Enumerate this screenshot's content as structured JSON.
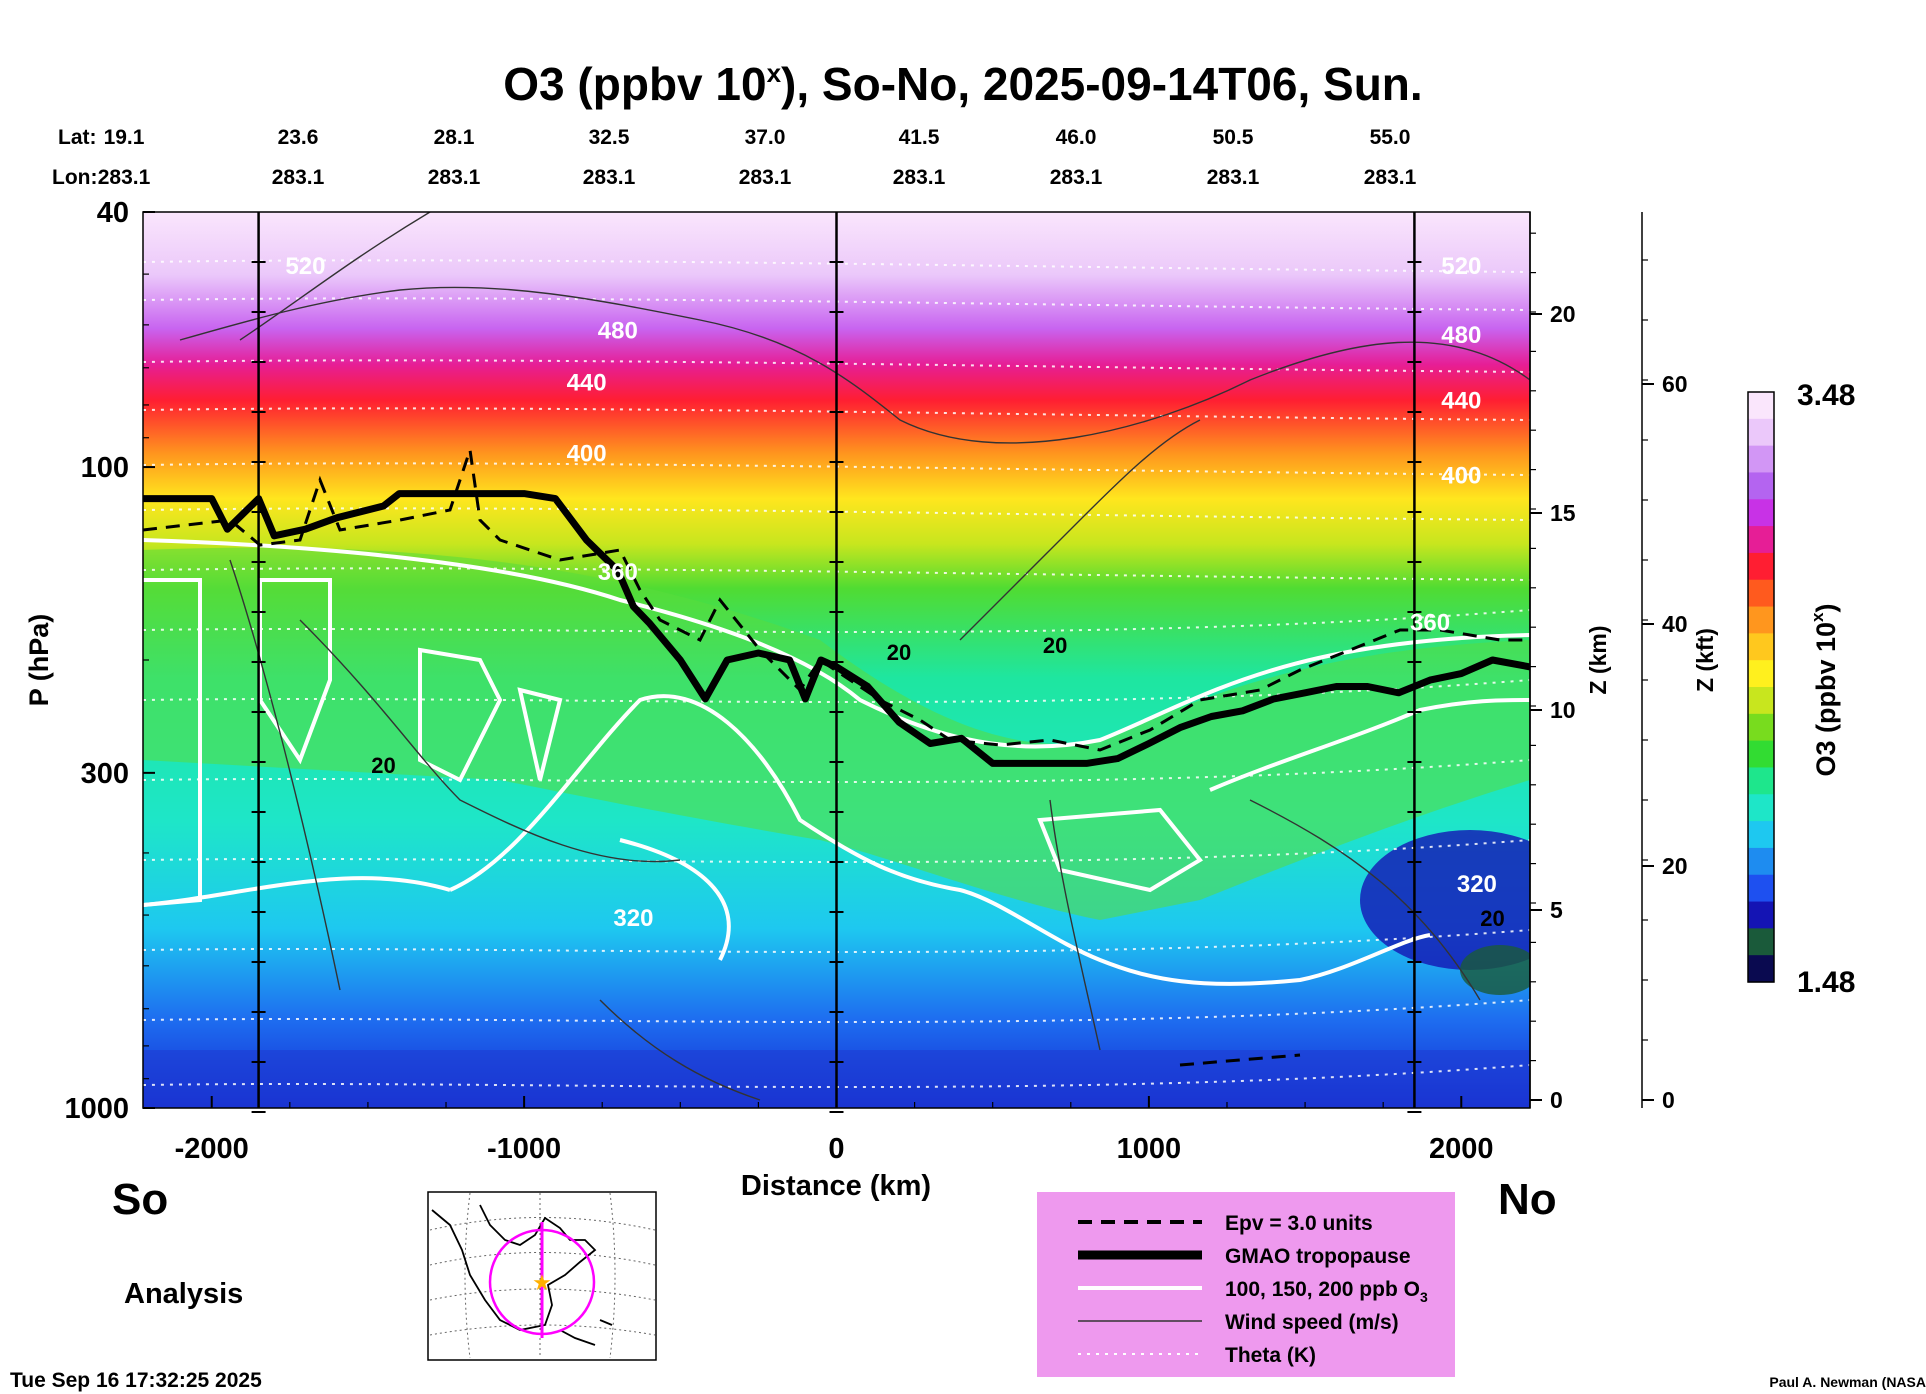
{
  "title_main": "O3 (ppbv 10",
  "title_sup": "x",
  "title_rest": "), So-No, 2025-09-14T06, Sun.",
  "header": {
    "lat_label": "Lat:",
    "lon_label": "Lon:",
    "lats": [
      "19.1",
      "23.6",
      "28.1",
      "32.5",
      "37.0",
      "41.5",
      "46.0",
      "50.5",
      "55.0"
    ],
    "lons": [
      "283.1",
      "283.1",
      "283.1",
      "283.1",
      "283.1",
      "283.1",
      "283.1",
      "283.1",
      "283.1"
    ]
  },
  "footer": {
    "south": "So",
    "north": "No",
    "analysis": "Analysis",
    "timestamp": "Tue Sep 16 17:32:25 2025",
    "credit": "Paul A. Newman (NASA"
  },
  "legend": {
    "items": [
      {
        "label": "Epv = 3.0 units",
        "style": "dashed"
      },
      {
        "label": "GMAO tropopause",
        "style": "thick"
      },
      {
        "label": "100, 150, 200 ppb O",
        "sub": "3",
        "style": "white"
      },
      {
        "label": "Wind speed (m/s)",
        "style": "thin"
      },
      {
        "label": "Theta (K)",
        "style": "dotted"
      }
    ],
    "bg_color": "#ee99ee"
  },
  "colorbar": {
    "label": "O3 (ppbv 10",
    "label_sup": "x",
    "label_end": ")",
    "max": "3.48",
    "min": "1.48",
    "colors": [
      "#0a0a50",
      "#1a5a3a",
      "#1414b4",
      "#1e50f0",
      "#1e8cf0",
      "#1ec8f0",
      "#1ee6c8",
      "#1ee68c",
      "#32dc32",
      "#78dc1e",
      "#c8e61e",
      "#fff01e",
      "#ffc81e",
      "#ff961e",
      "#ff5a1e",
      "#ff1e32",
      "#e61e96",
      "#c832e6",
      "#b464f0",
      "#d296f5",
      "#ebc8fa",
      "#fae6fc"
    ]
  },
  "chart_data": {
    "type": "heatmap",
    "title": "O3 (ppbv 10^x), So-No, 2025-09-14T06, Sun.",
    "xlabel": "Distance (km)",
    "ylabel": "P (hPa)",
    "zlabel_km": "Z (km)",
    "zlabel_kft": "Z (kft)",
    "xlim": [
      -2220,
      2220
    ],
    "ylim": [
      1000,
      40
    ],
    "yscale": "log",
    "x_ticks": [
      "-2000",
      "-1000",
      "0",
      "1000",
      "2000"
    ],
    "x_tick_values": [
      -2000,
      -1000,
      0,
      1000,
      2000
    ],
    "y_ticks": [
      "40",
      "100",
      "300",
      "1000"
    ],
    "y_tick_values": [
      40,
      100,
      300,
      1000
    ],
    "z_km_ticks": [
      "20",
      "15",
      "10",
      "5",
      "0"
    ],
    "z_km_values": [
      20,
      15,
      10,
      5,
      0
    ],
    "z_kft_ticks": [
      "60",
      "40",
      "20",
      "0"
    ],
    "z_kft_values": [
      60,
      40,
      20,
      0
    ],
    "section_lines_km": [
      -1850,
      0,
      1850
    ],
    "colorbar_range": [
      1.48,
      3.48
    ],
    "tropopause": {
      "name": "GMAO tropopause",
      "x": [
        -2220,
        -2000,
        -1950,
        -1850,
        -1800,
        -1700,
        -1600,
        -1450,
        -1400,
        -1200,
        -1000,
        -900,
        -800,
        -700,
        -650,
        -600,
        -500,
        -420,
        -350,
        -250,
        -150,
        -100,
        -50,
        0,
        100,
        200,
        300,
        400,
        500,
        600,
        800,
        900,
        1000,
        1100,
        1200,
        1300,
        1400,
        1500,
        1600,
        1700,
        1800,
        1900,
        2000,
        2100,
        2220
      ],
      "p_hPa": [
        112,
        112,
        125,
        112,
        128,
        125,
        120,
        115,
        110,
        110,
        110,
        112,
        130,
        145,
        165,
        175,
        200,
        230,
        200,
        195,
        200,
        230,
        200,
        205,
        220,
        250,
        270,
        265,
        290,
        290,
        290,
        285,
        270,
        255,
        245,
        240,
        230,
        225,
        220,
        220,
        225,
        215,
        210,
        200,
        205
      ]
    },
    "theta_contours_K": [
      {
        "label": "520",
        "x": -1700,
        "p_hPa": 50
      },
      {
        "label": "480",
        "x": -700,
        "p_hPa": 63
      },
      {
        "label": "440",
        "x": -800,
        "p_hPa": 76
      },
      {
        "label": "400",
        "x": -800,
        "p_hPa": 98
      },
      {
        "label": "360",
        "x": -700,
        "p_hPa": 150
      },
      {
        "label": "320",
        "x": -650,
        "p_hPa": 520
      },
      {
        "label": "520",
        "x": 2000,
        "p_hPa": 50
      },
      {
        "label": "480",
        "x": 2000,
        "p_hPa": 64
      },
      {
        "label": "440",
        "x": 2000,
        "p_hPa": 81
      },
      {
        "label": "400",
        "x": 2000,
        "p_hPa": 106
      },
      {
        "label": "360",
        "x": 1900,
        "p_hPa": 180
      },
      {
        "label": "320",
        "x": 2050,
        "p_hPa": 460
      }
    ],
    "wind_speed_labels_mps": [
      {
        "label": "20",
        "x": -1450,
        "p_hPa": 300
      },
      {
        "label": "20",
        "x": 200,
        "p_hPa": 200
      },
      {
        "label": "20",
        "x": 700,
        "p_hPa": 195
      },
      {
        "label": "20",
        "x": 2100,
        "p_hPa": 520
      }
    ]
  }
}
